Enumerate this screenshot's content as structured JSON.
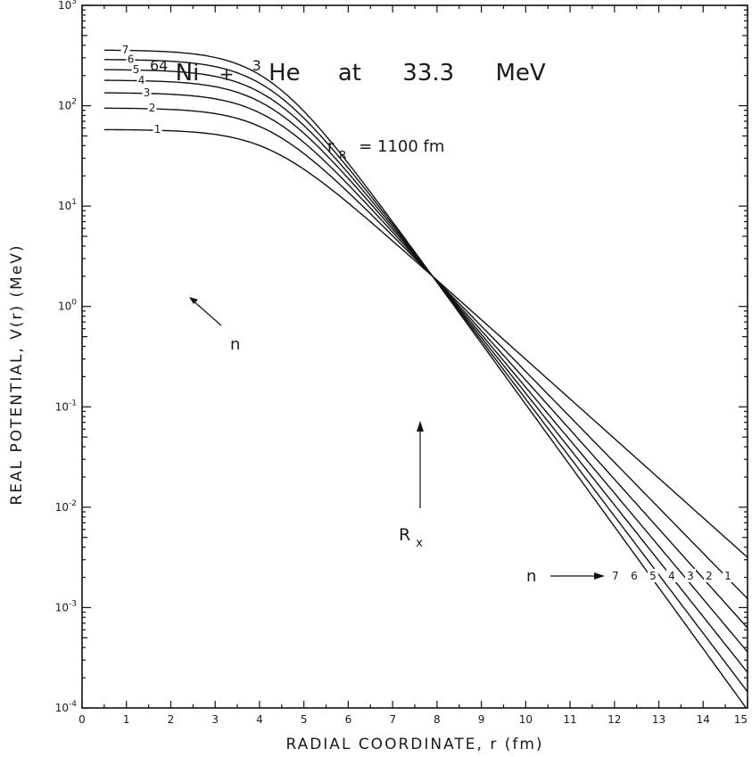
{
  "chart_data": {
    "type": "line",
    "title": {
      "mass1": "64",
      "nucleus1": "Ni",
      "plus": "+",
      "mass2": "3",
      "nucleus2": "He",
      "at": "at",
      "energy": "33.3",
      "unit": "MeV"
    },
    "subtitle": {
      "symbol": "r",
      "sub": "R",
      "text": "=  1100   fm"
    },
    "xlabel": "RADIAL   COORDINATE,   r    (fm)",
    "ylabel": "REAL   POTENTIAL,   V(r)    (MeV)",
    "xlim": [
      0,
      15
    ],
    "ylim": [
      0.0001,
      1000
    ],
    "yscale": "log",
    "x_ticks": [
      "0",
      "1",
      "2",
      "3",
      "4",
      "5",
      "6",
      "7",
      "8",
      "9",
      "10",
      "11",
      "12",
      "13",
      "14",
      "15"
    ],
    "y_ticks": [
      {
        "base": "10",
        "exp": "-4"
      },
      {
        "base": "10",
        "exp": "-3"
      },
      {
        "base": "10",
        "exp": "-2"
      },
      {
        "base": "10",
        "exp": "-1"
      },
      {
        "base": "10",
        "exp": "0"
      },
      {
        "base": "10",
        "exp": "1"
      },
      {
        "base": "10",
        "exp": "2"
      },
      {
        "base": "10",
        "exp": "3"
      }
    ],
    "crossing_point": {
      "r": 7.9,
      "V": 2.0
    },
    "series": [
      {
        "n": "1",
        "V0": 58,
        "left_label": "1",
        "right_label": "1"
      },
      {
        "n": "2",
        "V0": 95,
        "left_label": "2",
        "right_label": "2"
      },
      {
        "n": "3",
        "V0": 135,
        "left_label": "3",
        "right_label": "3"
      },
      {
        "n": "4",
        "V0": 180,
        "left_label": "4",
        "right_label": "4"
      },
      {
        "n": "5",
        "V0": 230,
        "left_label": "5",
        "right_label": "5"
      },
      {
        "n": "6",
        "V0": 290,
        "left_label": "6",
        "right_label": "6"
      },
      {
        "n": "7",
        "V0": 360,
        "left_label": "7",
        "right_label": "7"
      }
    ],
    "annotations": {
      "n_left": "n",
      "n_right": "n",
      "rx_symbol": "R",
      "rx_sub": "x"
    }
  }
}
